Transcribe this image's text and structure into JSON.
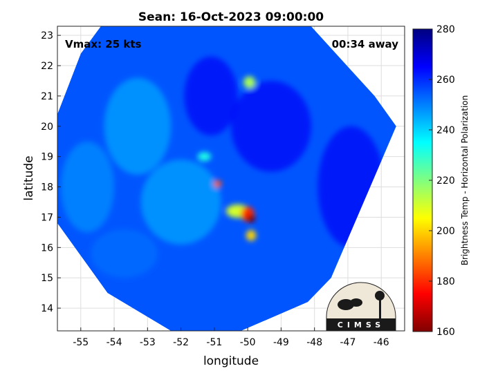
{
  "chart_data": {
    "type": "heatmap",
    "title": "Sean: 16-Oct-2023 09:00:00",
    "xlabel": "longitude",
    "ylabel": "latitude",
    "xlim": [
      -55.7,
      -45.3
    ],
    "ylim": [
      13.25,
      23.3
    ],
    "x_ticks": [
      -55,
      -54,
      -53,
      -52,
      -51,
      -50,
      -49,
      -48,
      -47,
      -46
    ],
    "y_ticks": [
      14,
      15,
      16,
      17,
      18,
      19,
      20,
      21,
      22,
      23
    ],
    "x_tick_labels": [
      "-55",
      "-54",
      "-53",
      "-52",
      "-51",
      "-50",
      "-49",
      "-48",
      "-47",
      "-46"
    ],
    "y_tick_labels": [
      "14",
      "15",
      "16",
      "17",
      "18",
      "19",
      "20",
      "21",
      "22",
      "23"
    ],
    "grid": true,
    "annotations": {
      "vmax": "Vmax: 25 kts",
      "time_away": "00:34 away"
    },
    "colorbar": {
      "label": "Brightness Temp - Horizontal Polarization",
      "range": [
        160,
        280
      ],
      "ticks": [
        160,
        180,
        200,
        220,
        240,
        260,
        280
      ],
      "tick_labels": [
        "160",
        "180",
        "200",
        "220",
        "240",
        "260",
        "280"
      ],
      "colormap": [
        "#800000",
        "#ff0000",
        "#ff8000",
        "#ffff00",
        "#80ff80",
        "#00ffff",
        "#0080ff",
        "#0000ff",
        "#000080"
      ]
    },
    "swath_polygon": [
      [
        -54.4,
        23.3
      ],
      [
        -48.1,
        23.3
      ],
      [
        -46.2,
        21.0
      ],
      [
        -45.55,
        20.0
      ],
      [
        -47.5,
        15.0
      ],
      [
        -48.2,
        14.2
      ],
      [
        -50.2,
        13.25
      ],
      [
        -52.3,
        13.25
      ],
      [
        -54.2,
        14.5
      ],
      [
        -55.7,
        16.8
      ],
      [
        -55.7,
        20.4
      ],
      [
        -55.0,
        22.4
      ]
    ],
    "background_temp": 255,
    "features": [
      {
        "lon": -49.9,
        "lat": 16.95,
        "temp": 160,
        "sx": 0.12,
        "sy": 0.13
      },
      {
        "lon": -50.3,
        "lat": 17.2,
        "temp": 210,
        "sx": 0.35,
        "sy": 0.22
      },
      {
        "lon": -49.9,
        "lat": 16.4,
        "temp": 200,
        "sx": 0.15,
        "sy": 0.18
      },
      {
        "lon": -50.0,
        "lat": 17.1,
        "temp": 180,
        "sx": 0.2,
        "sy": 0.25
      },
      {
        "lon": -50.9,
        "lat": 18.1,
        "temp": 185,
        "sx": 0.12,
        "sy": 0.12
      },
      {
        "lon": -49.95,
        "lat": 21.45,
        "temp": 215,
        "sx": 0.18,
        "sy": 0.2
      },
      {
        "lon": -51.3,
        "lat": 19.0,
        "temp": 232,
        "sx": 0.2,
        "sy": 0.15
      },
      {
        "lon": -52.0,
        "lat": 17.5,
        "temp": 245,
        "sx": 1.2,
        "sy": 1.4
      },
      {
        "lon": -53.3,
        "lat": 20.0,
        "temp": 245,
        "sx": 1.0,
        "sy": 1.6
      },
      {
        "lon": -54.8,
        "lat": 18.0,
        "temp": 248,
        "sx": 0.8,
        "sy": 1.5
      },
      {
        "lon": -53.7,
        "lat": 15.8,
        "temp": 252,
        "sx": 1.0,
        "sy": 0.8
      },
      {
        "lon": -46.9,
        "lat": 18.0,
        "temp": 266,
        "sx": 1.0,
        "sy": 2.0
      },
      {
        "lon": -49.3,
        "lat": 20.0,
        "temp": 266,
        "sx": 1.2,
        "sy": 1.5
      },
      {
        "lon": -51.1,
        "lat": 21.0,
        "temp": 266,
        "sx": 0.8,
        "sy": 1.3
      }
    ]
  },
  "logo": {
    "text": "CIMSS"
  }
}
